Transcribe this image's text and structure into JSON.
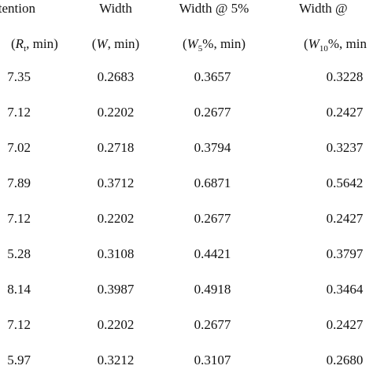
{
  "table": {
    "header": [
      "etention",
      "Width",
      "Width @ 5%",
      "Width @"
    ],
    "units": [
      [
        "(",
        "R",
        "t",
        ", min)"
      ],
      [
        "(",
        "W",
        ", min)"
      ],
      [
        "(",
        "W",
        "5",
        "%, min)"
      ],
      [
        "(",
        "W",
        "10",
        "%, min"
      ]
    ],
    "rows": [
      [
        "7.35",
        "0.2683",
        "0.3657",
        "0.3228"
      ],
      [
        "7.12",
        "0.2202",
        "0.2677",
        "0.2427"
      ],
      [
        "7.02",
        "0.2718",
        "0.3794",
        "0.3237"
      ],
      [
        "7.89",
        "0.3712",
        "0.6871",
        "0.5642"
      ],
      [
        "7.12",
        "0.2202",
        "0.2677",
        "0.2427"
      ],
      [
        "5.28",
        "0.3108",
        "0.4421",
        "0.3797"
      ],
      [
        "8.14",
        "0.3987",
        "0.4918",
        "0.3464"
      ],
      [
        "7.12",
        "0.2202",
        "0.2677",
        "0.2427"
      ],
      [
        "5.97",
        "0.3212",
        "0.3107",
        "0.2680"
      ]
    ]
  }
}
